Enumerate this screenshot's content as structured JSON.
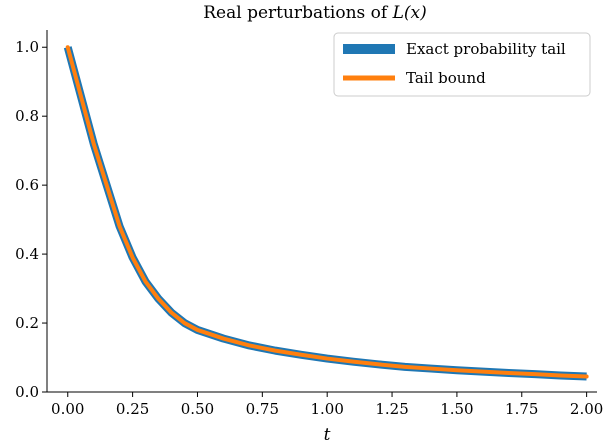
{
  "chart_data": {
    "type": "line",
    "title_prefix": "Real perturbations of ",
    "title_math": "L(x)",
    "xlabel": "t",
    "ylabel": "",
    "xlim": [
      -0.08,
      2.04
    ],
    "ylim": [
      0.0,
      1.05
    ],
    "xticks": [
      0.0,
      0.25,
      0.5,
      0.75,
      1.0,
      1.25,
      1.5,
      1.75,
      2.0
    ],
    "xtick_labels": [
      "0.00",
      "0.25",
      "0.50",
      "0.75",
      "1.00",
      "1.25",
      "1.50",
      "1.75",
      "2.00"
    ],
    "yticks": [
      0.0,
      0.2,
      0.4,
      0.6,
      0.8,
      1.0
    ],
    "ytick_labels": [
      "0.0",
      "0.2",
      "0.4",
      "0.6",
      "0.8",
      "1.0"
    ],
    "grid": false,
    "legend_position": "top-right",
    "x": [
      0.0,
      0.05,
      0.1,
      0.15,
      0.2,
      0.25,
      0.3,
      0.35,
      0.4,
      0.45,
      0.5,
      0.6,
      0.7,
      0.8,
      0.9,
      1.0,
      1.1,
      1.2,
      1.3,
      1.4,
      1.5,
      1.6,
      1.7,
      1.8,
      1.9,
      2.0
    ],
    "series": [
      {
        "name": "Exact probability tail",
        "color": "#1f77b4",
        "values": [
          1.0,
          0.86,
          0.72,
          0.6,
          0.48,
          0.39,
          0.32,
          0.27,
          0.23,
          0.2,
          0.18,
          0.155,
          0.135,
          0.12,
          0.108,
          0.097,
          0.088,
          0.08,
          0.073,
          0.068,
          0.063,
          0.059,
          0.055,
          0.052,
          0.048,
          0.045
        ]
      },
      {
        "name": "Tail bound",
        "color": "#ff7f0e",
        "values": [
          1.0,
          0.86,
          0.72,
          0.6,
          0.48,
          0.39,
          0.32,
          0.27,
          0.23,
          0.2,
          0.18,
          0.155,
          0.135,
          0.12,
          0.108,
          0.097,
          0.088,
          0.08,
          0.073,
          0.068,
          0.063,
          0.059,
          0.055,
          0.052,
          0.048,
          0.045
        ]
      }
    ]
  }
}
